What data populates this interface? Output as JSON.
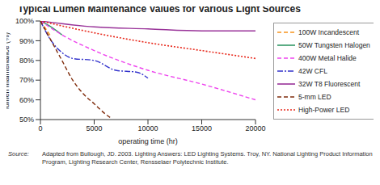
{
  "chart_data": {
    "type": "line",
    "title": "Typical Lumen Maintenance Values for Various Light Sources",
    "x_label": "operating time (hr)",
    "y_label": "lumen maintenance (%)",
    "xlim": [
      0,
      20000
    ],
    "xticks": [
      0,
      5000,
      10000,
      15000,
      20000
    ],
    "ylim": [
      50,
      100
    ],
    "yticks": [
      {
        "value": 50,
        "label": "50%"
      },
      {
        "value": 60,
        "label": "60%"
      },
      {
        "value": 70,
        "label": "70%"
      },
      {
        "value": 80,
        "label": "80%"
      },
      {
        "value": 90,
        "label": "90%"
      },
      {
        "value": 100,
        "label": "100%"
      }
    ],
    "grid": false,
    "legend": "right",
    "series": [
      {
        "name": "100W Incandescent",
        "color": "#f7941d",
        "line_style": "dashed",
        "x": [
          0,
          500,
          1000
        ],
        "values": [
          100,
          96,
          92
        ]
      },
      {
        "name": "50W Tungsten Halogen",
        "color": "#339966",
        "line_style": "solid",
        "x": [
          0,
          1000,
          2000
        ],
        "values": [
          100,
          97,
          93
        ]
      },
      {
        "name": "400W Metal Halide",
        "color": "#ee44ee",
        "line_style": "dashed",
        "x": [
          0,
          2000,
          5000,
          10000,
          15000,
          20000
        ],
        "values": [
          100,
          93,
          85,
          75,
          68,
          60
        ]
      },
      {
        "name": "42W CFL",
        "color": "#3333cc",
        "line_style": "dashdot",
        "x": [
          0,
          1000,
          2000,
          3000,
          5000,
          7000,
          9000,
          10000
        ],
        "values": [
          100,
          90,
          84,
          81,
          80,
          75,
          74,
          71
        ]
      },
      {
        "name": "32W T8 Fluorescent",
        "color": "#993399",
        "line_style": "solid",
        "x": [
          0,
          5000,
          10000,
          15000,
          20000
        ],
        "values": [
          100,
          97,
          96,
          95,
          95
        ]
      },
      {
        "name": "5-mm LED",
        "color": "#7f2b0b",
        "line_style": "dashed",
        "x": [
          0,
          1000,
          2000,
          3000,
          4000,
          5000,
          6000,
          6500
        ],
        "values": [
          100,
          90,
          80,
          70,
          63,
          58,
          53,
          51
        ]
      },
      {
        "name": "High-Power LED",
        "color": "#e8291c",
        "line_style": "dotted",
        "x": [
          0,
          5000,
          10000,
          15000,
          20000
        ],
        "values": [
          100,
          94,
          89,
          85,
          81
        ]
      }
    ],
    "source_label": "Source:",
    "source_text": "Adapted from Bullough, JD. 2003. Lighting Answers: LED Lighting Systems. Troy, NY. National Lighting Product Information Program, Lighting Research Center, Rensselaer Polytechnic Institute."
  }
}
